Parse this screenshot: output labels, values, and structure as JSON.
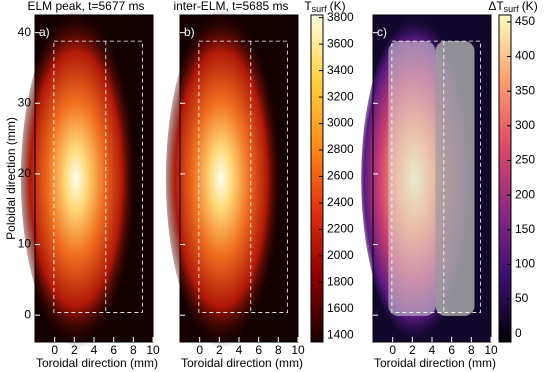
{
  "chart_data": [
    {
      "type": "heatmap",
      "title": "ELM peak, t=5677 ms",
      "panel_label": "a)",
      "xlabel": "Toroidal direction (mm)",
      "ylabel": "Poloidal direction (mm)",
      "xlim": [
        -2,
        10
      ],
      "xticks": [
        0,
        2,
        4,
        6,
        8,
        10
      ],
      "ylim": [
        -3.8,
        42.5
      ],
      "yticks": [
        0,
        10,
        20,
        30,
        40
      ],
      "style": "hot"
    },
    {
      "type": "heatmap",
      "title": "inter-ELM, t=5685 ms",
      "panel_label": "b)",
      "xlabel": "Toroidal direction (mm)",
      "xlim": [
        -2,
        10
      ],
      "xticks": [
        0,
        2,
        4,
        6,
        8,
        10
      ],
      "ylim": [
        -3.8,
        42.5
      ],
      "yticks": [
        0,
        10,
        20,
        30,
        40
      ],
      "style": "hot",
      "colorbar": {
        "label": {
          "main": "T",
          "sub": "surf",
          "unit": "(K)"
        },
        "lim": [
          1350,
          3820
        ],
        "ticks": [
          1400,
          1600,
          1800,
          2000,
          2200,
          2400,
          2600,
          2800,
          3000,
          3200,
          3400,
          3600,
          3800
        ],
        "colors": [
          "#1a0000",
          "#8b0000",
          "#e03010",
          "#ff8c1a",
          "#ffd040",
          "#ffffe0"
        ]
      }
    },
    {
      "type": "heatmap",
      "panel_label": "c)",
      "xlabel": "Toroidal direction (mm)",
      "xlim": [
        -2,
        10
      ],
      "xticks": [
        0,
        2,
        4,
        6,
        8,
        10
      ],
      "ylim": [
        -3.8,
        42.5
      ],
      "yticks": [
        0,
        10,
        20,
        30,
        40
      ],
      "style": "overlay",
      "colorbar": {
        "label": {
          "main": "ΔT",
          "sub": "surf",
          "unit": "(K)"
        },
        "lim": [
          -12,
          460
        ],
        "ticks": [
          0,
          50,
          100,
          150,
          200,
          250,
          300,
          350,
          400,
          450
        ],
        "colors": [
          "#000004",
          "#3b0f70",
          "#8c2981",
          "#de4968",
          "#fe9f6d",
          "#fcfdbf"
        ]
      }
    }
  ]
}
